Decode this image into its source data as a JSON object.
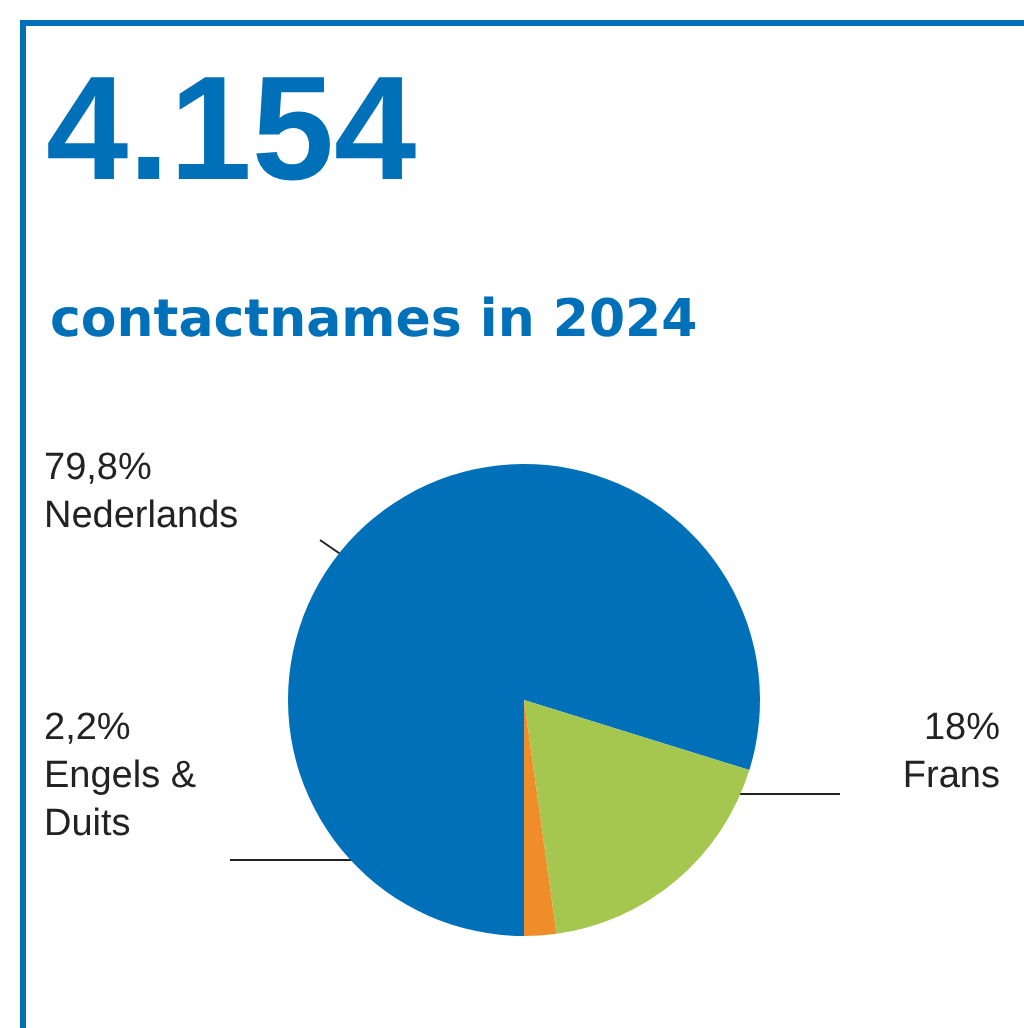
{
  "chart_data": {
    "type": "pie",
    "title": "4.154",
    "subtitle": "contactnames in 2024",
    "categories": [
      "Nederlands",
      "Frans",
      "Engels & Duits"
    ],
    "values": [
      79.8,
      18,
      2.2
    ],
    "value_labels": [
      "79,8%",
      "18%",
      "2,2%"
    ],
    "colors": [
      "#0070b8",
      "#a6c74f",
      "#ef8d2a"
    ],
    "legend": false
  }
}
